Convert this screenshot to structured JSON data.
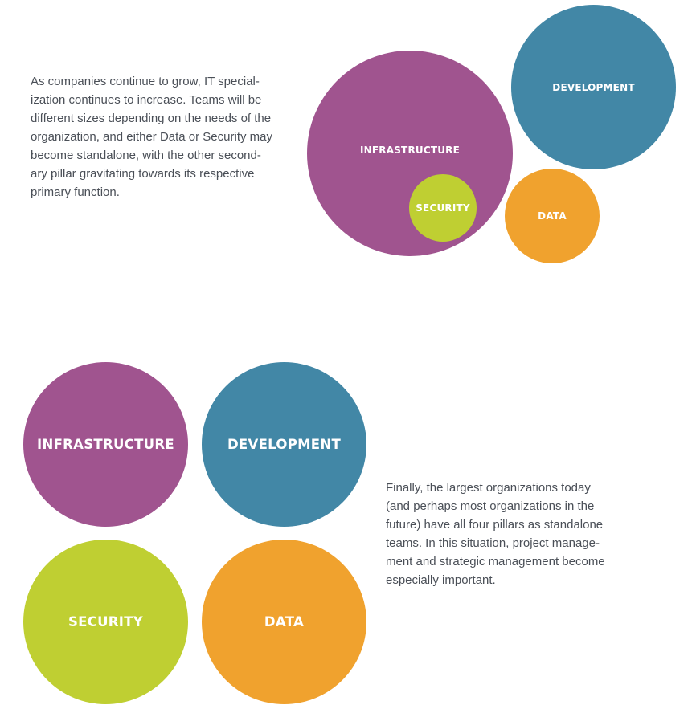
{
  "top_section": {
    "paragraph": "As companies continue to grow, IT special-\nization continues to increase. Teams will be\ndifferent sizes depending on the needs of the\norganization, and either Data or Security may\nbecome standalone, with the other second-\nary pillar gravitating towards its respective\nprimary function.",
    "circles": {
      "infrastructure": "INFRASTRUCTURE",
      "security": "SECURITY",
      "development": "DEVELOPMENT",
      "data": "DATA"
    }
  },
  "bottom_section": {
    "paragraph": "Finally, the largest organizations today\n(and perhaps most organizations in the\nfuture) have all four pillars as standalone\nteams. In this situation, project manage-\nment and strategic management become\nespecially important.",
    "circles": {
      "infrastructure": "INFRASTRUCTURE",
      "development": "DEVELOPMENT",
      "security": "SECURITY",
      "data": "DATA"
    }
  },
  "colors": {
    "infrastructure": "#a0548f",
    "development": "#4287a6",
    "security": "#bfcf32",
    "data": "#f0a22e",
    "body_text": "#4a4f57"
  }
}
